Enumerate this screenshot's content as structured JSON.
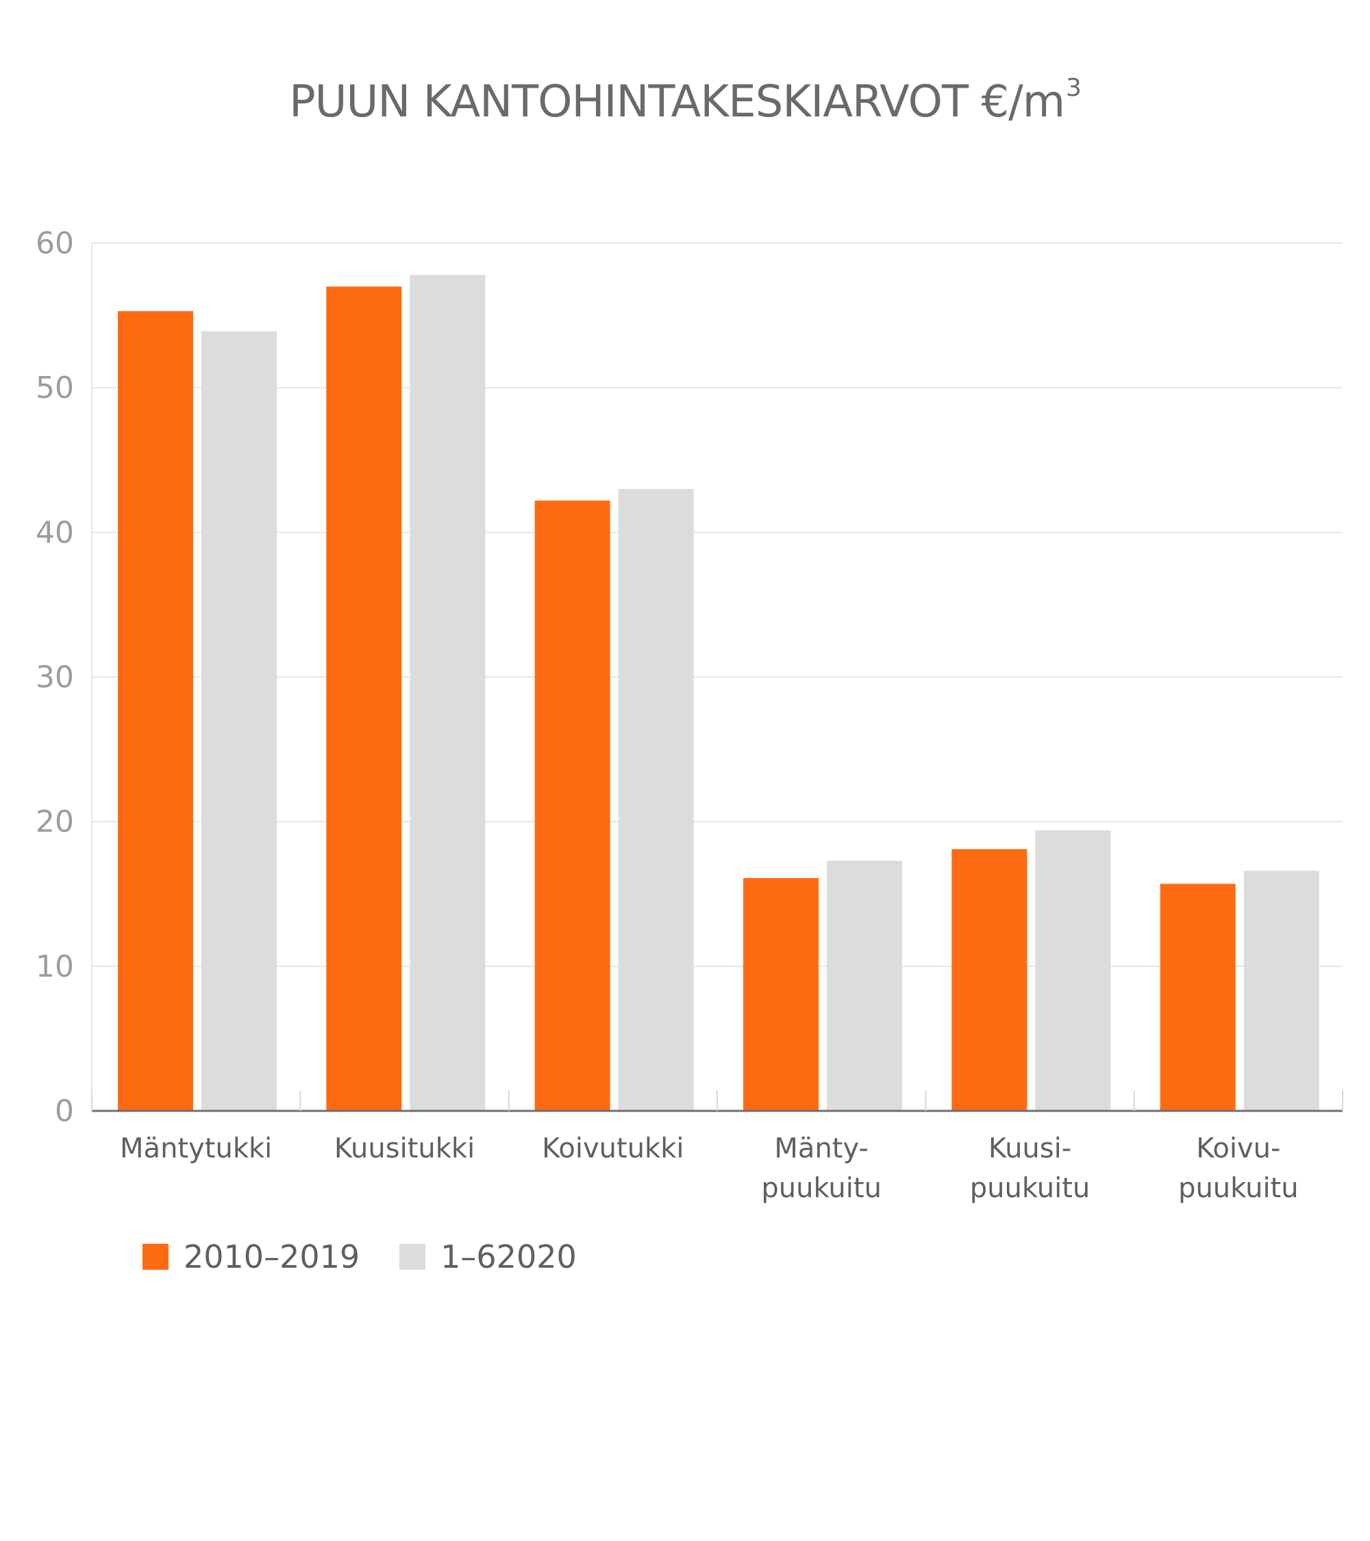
{
  "chart_data": {
    "type": "bar",
    "title": "PUUN KANTOHINTAKESKIARVOT €/m",
    "title_superscript": "3",
    "categories": [
      [
        "Mäntytukki"
      ],
      [
        "Kuusitukki"
      ],
      [
        "Koivutukki"
      ],
      [
        "Mänty-",
        "puukuitu"
      ],
      [
        "Kuusi-",
        "puukuitu"
      ],
      [
        "Koivu-",
        "puukuitu"
      ]
    ],
    "series": [
      {
        "name": "2010–2019",
        "color": "#ff6b12",
        "values": [
          55.3,
          57.0,
          42.2,
          16.1,
          18.1,
          15.7
        ]
      },
      {
        "name": "1–62020",
        "color": "#dcdcdc",
        "values": [
          53.9,
          57.8,
          43.0,
          17.3,
          19.4,
          16.6
        ]
      }
    ],
    "ylim": [
      0,
      60
    ],
    "yticks": [
      0,
      10,
      20,
      30,
      40,
      50,
      60
    ],
    "grid": true,
    "legend_position": "bottom-left",
    "xlabel": "",
    "ylabel": ""
  }
}
